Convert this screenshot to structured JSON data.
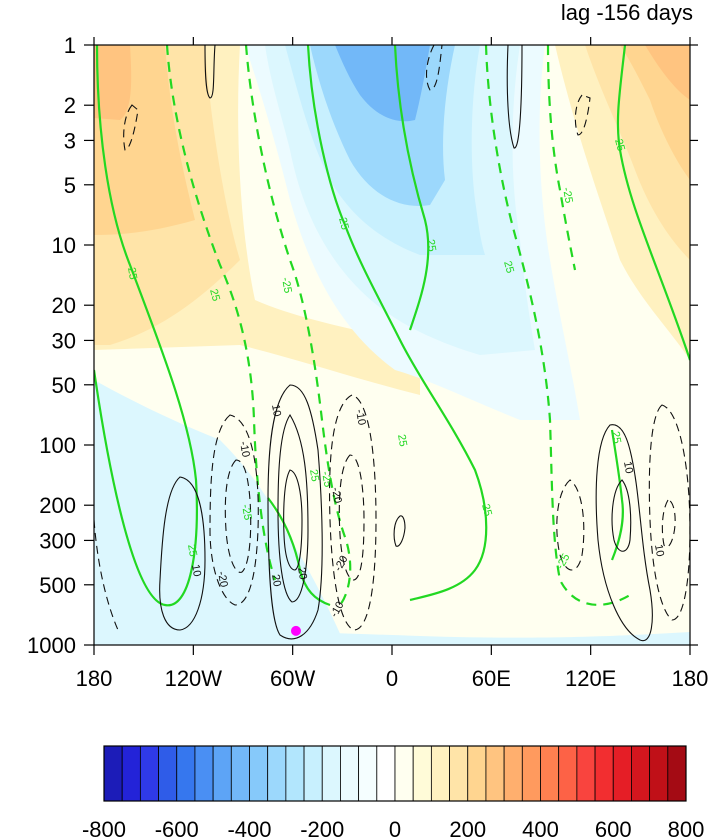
{
  "chart_data": {
    "type": "heatmap",
    "title": "lag -156 days",
    "xlabel": "",
    "ylabel": "",
    "x_ticks": [
      "180",
      "120W",
      "60W",
      "0",
      "60E",
      "120E",
      "180"
    ],
    "x_tick_values": [
      -180,
      -120,
      -60,
      0,
      60,
      120,
      180
    ],
    "y_ticks": [
      "1",
      "2",
      "3",
      "5",
      "10",
      "20",
      "30",
      "50",
      "100",
      "200",
      "300",
      "500",
      "1000"
    ],
    "y_tick_values": [
      1,
      2,
      3,
      5,
      10,
      20,
      30,
      50,
      100,
      200,
      300,
      500,
      1000
    ],
    "y_scale": "log",
    "y_reversed": true,
    "xlim": [
      -180,
      180
    ],
    "ylim": [
      1000,
      1
    ],
    "colorbar": {
      "levels": [
        -800,
        -750,
        -700,
        -650,
        -600,
        -550,
        -500,
        -450,
        -400,
        -350,
        -300,
        -250,
        -200,
        -150,
        -100,
        -50,
        0,
        50,
        100,
        150,
        200,
        250,
        300,
        350,
        400,
        450,
        500,
        550,
        600,
        650,
        700,
        750,
        800
      ],
      "tick_labels": [
        "-800",
        "-600",
        "-400",
        "-200",
        "0",
        "200",
        "400",
        "600",
        "800"
      ],
      "colors": [
        "#1c1cb8",
        "#2323d8",
        "#2f3ae8",
        "#2f5ce8",
        "#3677ee",
        "#4a8ff3",
        "#5da4f6",
        "#72b8f8",
        "#86c9fa",
        "#9cd8fc",
        "#b2e6fd",
        "#c8f0fe",
        "#dcf7fe",
        "#ecfbff",
        "#f5feff",
        "#ffffff",
        "#fffff0",
        "#fffbd8",
        "#fff1c0",
        "#ffe4a8",
        "#ffd590",
        "#ffc480",
        "#ffaf6e",
        "#ff9a5e",
        "#ff8050",
        "#fd6246",
        "#f9443e",
        "#f22e30",
        "#e51e26",
        "#d4161e",
        "#c01018",
        "#a40b14"
      ]
    },
    "shading_regions": [
      {
        "lon_range": [
          -180,
          -120
        ],
        "p_range": [
          1,
          50
        ],
        "value": 200
      },
      {
        "lon_range": [
          -60,
          20
        ],
        "p_range": [
          1,
          200
        ],
        "value": -200
      },
      {
        "lon_range": [
          -20,
          30
        ],
        "p_range": [
          1,
          10
        ],
        "value": -400
      },
      {
        "lon_range": [
          140,
          180
        ],
        "p_range": [
          1,
          5
        ],
        "value": 300
      },
      {
        "lon_range": [
          -180,
          -100
        ],
        "p_range": [
          100,
          1000
        ],
        "value": -50
      }
    ],
    "contour_labels_green": [
      "25",
      "25",
      "-25",
      "-25",
      "25",
      "25",
      "-25",
      "25",
      "25",
      "-25",
      "25",
      "25",
      "-25",
      "25",
      "-25",
      "25"
    ],
    "contour_labels_black": [
      "10",
      "-10",
      "10",
      "-10",
      "20",
      "-20",
      "20",
      "-20",
      "-10",
      "10",
      "10",
      "-20"
    ],
    "marker": {
      "lon": -58,
      "p": 850,
      "color": "#ff00ff"
    }
  }
}
